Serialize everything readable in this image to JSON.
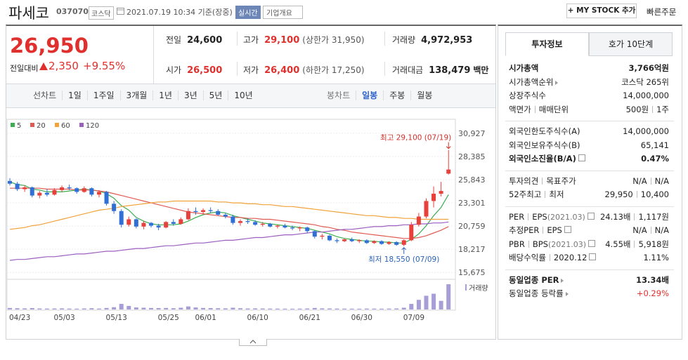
{
  "header": {
    "name": "파세코",
    "code": "037070",
    "market": "코스닥",
    "timestamp": "2021.07.19 10:34 기준(장중)",
    "realtime": "실시간",
    "company_info": "기업개요",
    "my_stock": "+ MY STOCK 추가",
    "quick_order": "빠른주문"
  },
  "price": {
    "current": "26,950",
    "change_label": "전일대비",
    "change": "2,350",
    "change_pct": "+9.55%"
  },
  "quote": [
    {
      "label": "전일",
      "value": "24,600"
    },
    {
      "label": "고가",
      "value": "29,100",
      "note": "(상한가 31,950)",
      "color": "#e0302d"
    },
    {
      "label": "거래량",
      "value": "4,972,953"
    },
    {
      "label": "시가",
      "value": "26,500",
      "color": "#e0302d"
    },
    {
      "label": "저가",
      "value": "26,400",
      "note": "(하한가 17,250)",
      "color": "#e0302d"
    },
    {
      "label": "거래대금",
      "value": "138,479",
      "unit": "백만"
    }
  ],
  "tabs": {
    "line": "선차트",
    "line_periods": [
      "1일",
      "1주일",
      "3개월",
      "1년",
      "3년",
      "5년",
      "10년"
    ],
    "candle": "봉차트",
    "candle_periods": [
      "일봉",
      "주봉",
      "월봉"
    ],
    "active": 0
  },
  "chart_data": {
    "type": "candlestick",
    "categories": [
      "04/23",
      null,
      null,
      null,
      null,
      null,
      "05/03",
      null,
      null,
      null,
      null,
      null,
      null,
      "05/13",
      null,
      null,
      null,
      null,
      null,
      null,
      "05/25",
      null,
      null,
      null,
      null,
      "06/01",
      null,
      null,
      null,
      null,
      null,
      null,
      "06/10",
      null,
      null,
      null,
      null,
      null,
      null,
      "06/21",
      null,
      null,
      null,
      null,
      null,
      null,
      "06/30",
      null,
      null,
      null,
      null,
      null,
      null,
      "07/09",
      null,
      null,
      null,
      null,
      null,
      null
    ],
    "ohlc": [
      [
        25700,
        26000,
        25200,
        25400
      ],
      [
        25400,
        25600,
        24600,
        24800
      ],
      [
        24800,
        25200,
        24500,
        25000
      ],
      [
        25000,
        25100,
        23900,
        24100
      ],
      [
        24100,
        24600,
        23800,
        24400
      ],
      [
        24400,
        24800,
        24000,
        24200
      ],
      [
        24200,
        24900,
        24100,
        24700
      ],
      [
        24700,
        25200,
        24500,
        25000
      ],
      [
        25000,
        25300,
        24700,
        24900
      ],
      [
        24900,
        25000,
        24300,
        24500
      ],
      [
        24500,
        25100,
        24400,
        24900
      ],
      [
        24900,
        25000,
        24000,
        24200
      ],
      [
        24200,
        24700,
        23900,
        24500
      ],
      [
        24500,
        24600,
        23000,
        23200
      ],
      [
        23200,
        23500,
        22100,
        22400
      ],
      [
        22400,
        22600,
        20600,
        20900
      ],
      [
        20900,
        21800,
        20700,
        21500
      ],
      [
        21500,
        21600,
        20500,
        20700
      ],
      [
        20700,
        21300,
        20400,
        21100
      ],
      [
        21100,
        21200,
        20600,
        20800
      ],
      [
        20800,
        21000,
        20300,
        20600
      ],
      [
        20600,
        21300,
        20500,
        21200
      ],
      [
        21200,
        21500,
        20800,
        21000
      ],
      [
        21000,
        21700,
        20900,
        21500
      ],
      [
        21500,
        22700,
        21400,
        22400
      ],
      [
        22400,
        22800,
        22000,
        22300
      ],
      [
        22300,
        22700,
        22100,
        22500
      ],
      [
        22500,
        22800,
        22200,
        22400
      ],
      [
        22400,
        22600,
        21900,
        22000
      ],
      [
        22000,
        22200,
        21600,
        21800
      ],
      [
        21800,
        22000,
        20900,
        21100
      ],
      [
        21100,
        21500,
        20800,
        21300
      ],
      [
        21300,
        21600,
        21000,
        21200
      ],
      [
        21200,
        21400,
        20800,
        20900
      ],
      [
        20900,
        21200,
        20700,
        21000
      ],
      [
        21000,
        21100,
        20600,
        20700
      ],
      [
        20700,
        20900,
        20500,
        20800
      ],
      [
        20800,
        21000,
        20500,
        20600
      ],
      [
        20600,
        20800,
        20300,
        20500
      ],
      [
        20500,
        20700,
        20200,
        20600
      ],
      [
        20600,
        20700,
        20000,
        20200
      ],
      [
        20200,
        20300,
        19400,
        19600
      ],
      [
        19600,
        19900,
        19300,
        19700
      ],
      [
        19700,
        19800,
        19100,
        19200
      ],
      [
        19200,
        19400,
        18900,
        19100
      ],
      [
        19100,
        19400,
        19000,
        19300
      ],
      [
        19300,
        19500,
        19000,
        19100
      ],
      [
        19100,
        19300,
        18900,
        19200
      ],
      [
        19200,
        19300,
        18800,
        18900
      ],
      [
        18900,
        19200,
        18800,
        19100
      ],
      [
        19100,
        19200,
        18700,
        18800
      ],
      [
        18800,
        19100,
        18700,
        19000
      ],
      [
        19000,
        19100,
        18600,
        18700
      ],
      [
        18700,
        19300,
        18550,
        19200
      ],
      [
        19200,
        21200,
        19100,
        20900
      ],
      [
        20900,
        22200,
        20700,
        21800
      ],
      [
        21800,
        23800,
        21600,
        23500
      ],
      [
        23500,
        25100,
        22800,
        24300
      ],
      [
        24300,
        25600,
        24000,
        24600
      ],
      [
        26500,
        29100,
        26400,
        26950
      ]
    ],
    "up_color": "#e8403a",
    "down_color": "#2f6fd6",
    "series": [
      {
        "name": "5",
        "color": "#3cae4f",
        "values": [
          25600,
          25300,
          25200,
          24800,
          24700,
          24500,
          24500,
          24500,
          24600,
          24700,
          24800,
          24700,
          24600,
          24300,
          23800,
          23000,
          22500,
          21700,
          21300,
          21000,
          20900,
          20900,
          20900,
          21000,
          21300,
          21700,
          22000,
          22200,
          22300,
          22200,
          21900,
          21700,
          21500,
          21300,
          21100,
          21000,
          20900,
          20800,
          20700,
          20600,
          20500,
          20300,
          20100,
          19900,
          19600,
          19400,
          19300,
          19200,
          19100,
          19100,
          19000,
          19000,
          18900,
          18900,
          19300,
          19900,
          20800,
          21900,
          22800,
          24200
        ]
      },
      {
        "name": "20",
        "color": "#e05a52",
        "values": [
          24900,
          24900,
          24900,
          24900,
          24900,
          24800,
          24800,
          24800,
          24800,
          24700,
          24700,
          24700,
          24600,
          24500,
          24300,
          24100,
          23900,
          23700,
          23500,
          23300,
          23100,
          22900,
          22700,
          22500,
          22300,
          22200,
          22100,
          22000,
          21900,
          21800,
          21700,
          21700,
          21600,
          21600,
          21500,
          21500,
          21400,
          21300,
          21200,
          21100,
          21000,
          20900,
          20700,
          20600,
          20400,
          20300,
          20100,
          20000,
          19900,
          19800,
          19700,
          19600,
          19500,
          19400,
          19400,
          19500,
          19700,
          20000,
          20300,
          20700
        ]
      },
      {
        "name": "60",
        "color": "#f2a23a",
        "values": [
          20400,
          20500,
          20600,
          20800,
          20900,
          21100,
          21300,
          21500,
          21700,
          21900,
          22100,
          22300,
          22500,
          22600,
          22700,
          22900,
          23000,
          23100,
          23200,
          23300,
          23400,
          23400,
          23500,
          23500,
          23500,
          23500,
          23500,
          23500,
          23400,
          23400,
          23300,
          23300,
          23200,
          23200,
          23100,
          23100,
          23000,
          22900,
          22900,
          22800,
          22700,
          22600,
          22500,
          22400,
          22300,
          22200,
          22100,
          22000,
          21900,
          21900,
          21800,
          21700,
          21700,
          21600,
          21600,
          21500,
          21500,
          21500,
          21500,
          21500
        ]
      },
      {
        "name": "120",
        "color": "#9b5fc0",
        "values": [
          17000,
          17100,
          17100,
          17200,
          17300,
          17400,
          17400,
          17500,
          17600,
          17700,
          17700,
          17800,
          17900,
          18000,
          18000,
          18100,
          18200,
          18300,
          18300,
          18400,
          18500,
          18600,
          18600,
          18700,
          18800,
          18900,
          18900,
          19000,
          19100,
          19200,
          19200,
          19300,
          19400,
          19500,
          19500,
          19600,
          19700,
          19800,
          19800,
          19900,
          20000,
          20100,
          20100,
          20200,
          20300,
          20400,
          20400,
          20500,
          20600,
          20700,
          20700,
          20800,
          20800,
          20900,
          20900,
          21000,
          21000,
          21100,
          21100,
          21200
        ]
      }
    ],
    "volume": {
      "name": "거래량",
      "color": "#a79ed8",
      "values": [
        300000,
        250000,
        220000,
        280000,
        200000,
        180000,
        200000,
        220000,
        180000,
        160000,
        200000,
        250000,
        180000,
        300000,
        450000,
        1100000,
        700000,
        400000,
        350000,
        300000,
        280000,
        300000,
        250000,
        350000,
        600000,
        400000,
        300000,
        280000,
        250000,
        220000,
        350000,
        250000,
        200000,
        220000,
        200000,
        180000,
        170000,
        160000,
        150000,
        170000,
        200000,
        300000,
        220000,
        200000,
        180000,
        170000,
        160000,
        150000,
        180000,
        170000,
        160000,
        180000,
        200000,
        350000,
        1100000,
        1900000,
        2700000,
        3100000,
        1700000,
        4972953
      ]
    },
    "ylim": [
      15000,
      32300
    ],
    "yticks": [
      {
        "value": 30927,
        "label": "30,927"
      },
      {
        "value": 28385,
        "label": "28,385"
      },
      {
        "value": 25843,
        "label": "25,843"
      },
      {
        "value": 23301,
        "label": "23,301"
      },
      {
        "value": 20759,
        "label": "20,759"
      },
      {
        "value": 18217,
        "label": "18,217"
      },
      {
        "value": 15675,
        "label": "15,675"
      }
    ],
    "grid": true,
    "annotations": [
      {
        "text": "최고 29,100 (07/19)",
        "color": "#d0302a"
      },
      {
        "text": "최저 18,550 (07/09)",
        "color": "#2a62b8"
      }
    ]
  },
  "invest": {
    "tabs": [
      "투자정보",
      "호가 10단계"
    ],
    "active": 0,
    "sections": [
      [
        {
          "label": [
            "시가총액"
          ],
          "value": [
            "3,766억원"
          ],
          "bold": true
        },
        {
          "label": [
            "시가총액순위"
          ],
          "value": [
            "코스닥 265위"
          ],
          "more": true
        },
        {
          "label": [
            "상장주식수"
          ],
          "value": [
            "14,000,000"
          ]
        },
        {
          "label": [
            "액면가",
            "매매단위"
          ],
          "value": [
            "500원",
            "1주"
          ]
        }
      ],
      [
        {
          "label": [
            "외국인한도주식수(A)"
          ],
          "value": [
            "14,000,000"
          ]
        },
        {
          "label": [
            "외국인보유주식수(B)"
          ],
          "value": [
            "65,141"
          ]
        },
        {
          "label": [
            "외국인소진율(B/A)"
          ],
          "value": [
            "0.47%"
          ],
          "bold": true,
          "help": true
        }
      ],
      [
        {
          "label": [
            "투자의견",
            "목표주가"
          ],
          "value": [
            "N/A",
            "N/A"
          ]
        },
        {
          "label": [
            "52주최고",
            "최저"
          ],
          "value": [
            "29,950",
            "10,400"
          ]
        }
      ],
      [
        {
          "label": [
            "PER",
            "EPS"
          ],
          "note": "(2021.03)",
          "value": [
            "24.13배",
            "1,117원"
          ],
          "help": true
        },
        {
          "label": [
            "추정PER",
            "EPS"
          ],
          "value": [
            "N/A",
            "N/A"
          ],
          "help": true
        },
        {
          "label": [
            "PBR",
            "BPS"
          ],
          "note": "(2021.03)",
          "value": [
            "4.55배",
            "5,918원"
          ],
          "help": true
        },
        {
          "label": [
            "배당수익률",
            "2020.12"
          ],
          "value": [
            "1.11%"
          ],
          "help": true
        }
      ],
      [
        {
          "label": [
            "동일업종 PER"
          ],
          "value": [
            "13.34배"
          ],
          "bold": true,
          "more": true
        },
        {
          "label": [
            "동일업종 등락률"
          ],
          "value": [
            "+0.29%"
          ],
          "more": true,
          "color": "#e0302d"
        }
      ]
    ]
  }
}
